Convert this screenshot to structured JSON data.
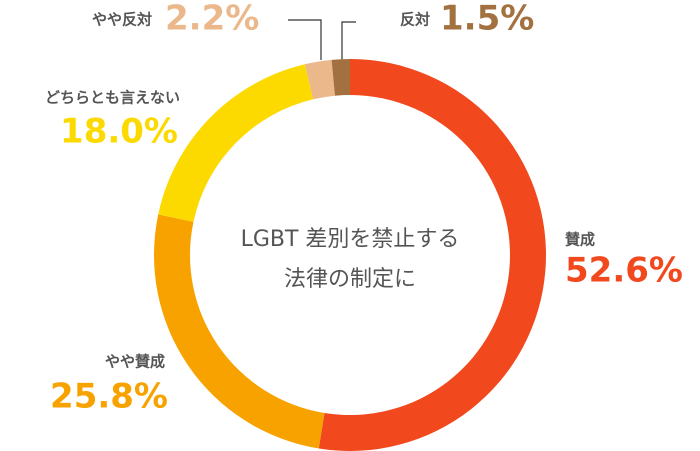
{
  "chart_data": {
    "type": "donut",
    "center_text": [
      "LGBT 差別を禁止する",
      "法律の制定に"
    ],
    "categories": [
      "賛成",
      "やや賛成",
      "どちらとも言えない",
      "やや反対",
      "反対"
    ],
    "values": [
      52.6,
      25.8,
      18.0,
      2.2,
      1.5
    ],
    "value_labels": [
      "52.6%",
      "25.8%",
      "18.0%",
      "2.2%",
      "1.5%"
    ],
    "colors": [
      "#f2481e",
      "#f8a200",
      "#fcda00",
      "#ebb88b",
      "#a37140"
    ]
  }
}
